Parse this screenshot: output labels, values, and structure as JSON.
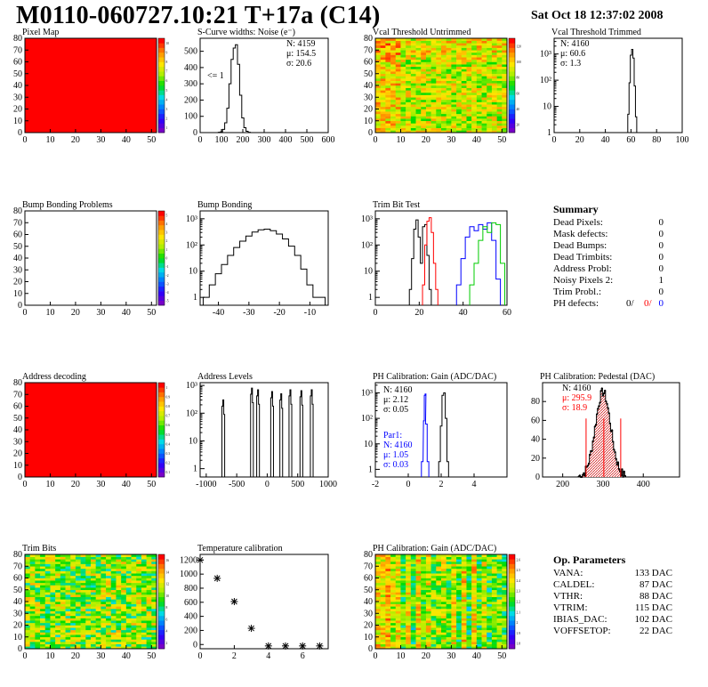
{
  "header": {
    "title": "M0110-060727.10:21 T+17a (C14)",
    "date": "Sat Oct 18 12:37:02 2008"
  },
  "chart_data": [
    {
      "id": "pixel_map",
      "type": "heatmap",
      "title": "Pixel Map",
      "x_ticks": [
        "0",
        "10",
        "20",
        "30",
        "40",
        "50"
      ],
      "y_ticks": [
        "0",
        "10",
        "20",
        "30",
        "40",
        "50",
        "60",
        "70",
        "80"
      ],
      "xlim": [
        0,
        52
      ],
      "ylim": [
        0,
        80
      ],
      "fill_color": "#ff0000",
      "colorbar_ticks": [
        "1",
        "2",
        "3",
        "4",
        "5",
        "6",
        "7",
        "8",
        "9",
        "10"
      ]
    },
    {
      "id": "scurve",
      "type": "line",
      "title": "S-Curve widths: Noise (e⁻)",
      "x_ticks": [
        "0",
        "100",
        "200",
        "300",
        "400",
        "500",
        "600"
      ],
      "y_ticks": [
        "0",
        "100",
        "200",
        "300",
        "400",
        "500"
      ],
      "xlim": [
        0,
        600
      ],
      "ylim": [
        0,
        580
      ],
      "annotation": "<= 1",
      "stats": [
        "N: 4159",
        "μ: 154.5",
        "σ: 20.6"
      ],
      "x": [
        60,
        70,
        80,
        90,
        100,
        110,
        120,
        130,
        140,
        150,
        160,
        170,
        180,
        190,
        200,
        210,
        220,
        230,
        240
      ],
      "y": [
        0,
        0,
        0,
        2,
        5,
        20,
        60,
        150,
        300,
        450,
        520,
        540,
        420,
        230,
        90,
        30,
        8,
        2,
        0
      ]
    },
    {
      "id": "vcal_untrimmed",
      "type": "heatmap",
      "title": "Vcal Threshold Untrimmed",
      "x_ticks": [
        "0",
        "10",
        "20",
        "30",
        "40",
        "50"
      ],
      "y_ticks": [
        "0",
        "10",
        "20",
        "30",
        "40",
        "50",
        "60",
        "70",
        "80"
      ],
      "xlim": [
        0,
        52
      ],
      "ylim": [
        0,
        80
      ],
      "colorbar_ticks": [
        "20",
        "40",
        "60",
        "80",
        "100",
        "120"
      ]
    },
    {
      "id": "vcal_trimmed",
      "type": "line",
      "title": "Vcal Threshold Trimmed",
      "x_ticks": [
        "0",
        "20",
        "40",
        "60",
        "80",
        "100"
      ],
      "y_log_ticks": [
        "1",
        "10",
        "10²",
        "10³"
      ],
      "xlim": [
        0,
        100
      ],
      "log_decades": [
        0,
        3.6
      ],
      "stats": [
        "N: 4160",
        "μ: 60.6",
        "σ:  1.3"
      ],
      "x": [
        57,
        58,
        59,
        60,
        61,
        62,
        63,
        64,
        65
      ],
      "y": [
        1,
        5,
        80,
        900,
        1500,
        700,
        60,
        4,
        1
      ]
    },
    {
      "id": "bump_problems",
      "type": "heatmap",
      "title": "Bump Bonding Problems",
      "x_ticks": [
        "0",
        "10",
        "20",
        "30",
        "40",
        "50"
      ],
      "y_ticks": [
        "0",
        "10",
        "20",
        "30",
        "40",
        "50",
        "60",
        "70",
        "80"
      ],
      "xlim": [
        0,
        52
      ],
      "ylim": [
        0,
        80
      ],
      "fill_color": "#ffffff",
      "colorbar_ticks": [
        "-5",
        "-4",
        "-3",
        "-2",
        "-1",
        "0",
        "1",
        "2",
        "3",
        "4",
        "5"
      ]
    },
    {
      "id": "bump_bonding",
      "type": "line",
      "title": "Bump Bonding",
      "x_ticks": [
        "-40",
        "-30",
        "-20",
        "-10"
      ],
      "y_log_ticks": [
        "1",
        "10",
        "10²",
        "10³"
      ],
      "xlim": [
        -46,
        -4
      ],
      "log_decades": [
        -0.3,
        3.3
      ],
      "x": [
        -44,
        -42,
        -40,
        -38,
        -36,
        -34,
        -32,
        -30,
        -28,
        -26,
        -24,
        -22,
        -20,
        -18,
        -16,
        -14,
        -12,
        -10,
        -8,
        -6
      ],
      "y": [
        1,
        3,
        8,
        18,
        40,
        80,
        140,
        220,
        310,
        380,
        400,
        350,
        260,
        170,
        90,
        40,
        12,
        3,
        1,
        1
      ]
    },
    {
      "id": "trim_bit_test",
      "type": "line",
      "title": "Trim Bit Test",
      "x_ticks": [
        "0",
        "20",
        "40",
        "60"
      ],
      "y_log_ticks": [
        "1",
        "10",
        "10²",
        "10³"
      ],
      "xlim": [
        0,
        60
      ],
      "log_decades": [
        -0.3,
        3.3
      ],
      "series": [
        {
          "color": "#000000",
          "x": [
            16,
            17,
            18,
            19,
            20,
            21,
            22,
            23,
            24,
            25
          ],
          "y": [
            2,
            30,
            400,
            900,
            200,
            20,
            500,
            600,
            40,
            2
          ]
        },
        {
          "color": "#ff0000",
          "x": [
            22,
            23,
            24,
            25,
            26,
            27,
            28
          ],
          "y": [
            3,
            100,
            800,
            1100,
            300,
            20,
            2
          ]
        },
        {
          "color": "#0000ff",
          "x": [
            38,
            40,
            42,
            44,
            46,
            48,
            50,
            52,
            54,
            56
          ],
          "y": [
            3,
            30,
            200,
            500,
            350,
            600,
            400,
            700,
            150,
            5
          ]
        },
        {
          "color": "#00cc00",
          "x": [
            44,
            46,
            48,
            50,
            52,
            54,
            56,
            58
          ],
          "y": [
            3,
            20,
            150,
            500,
            300,
            700,
            600,
            20
          ]
        }
      ]
    },
    {
      "id": "summary",
      "type": "table",
      "title": "Summary",
      "rows": [
        {
          "label": "Dead Pixels:",
          "value": "0"
        },
        {
          "label": "Mask defects:",
          "value": "0"
        },
        {
          "label": "Dead Bumps:",
          "value": "0"
        },
        {
          "label": "Dead Trimbits:",
          "value": "0"
        },
        {
          "label": "Address Probl:",
          "value": "0"
        },
        {
          "label": "Noisy Pixels 2:",
          "value": "1"
        },
        {
          "label": "Trim Probl.:",
          "value": "0"
        }
      ],
      "ph_defects": {
        "label": "PH defects:",
        "values": [
          "0/",
          "0/",
          "0"
        ],
        "colors": [
          "#000000",
          "#ff0000",
          "#0000ff"
        ]
      }
    },
    {
      "id": "address_decoding",
      "type": "heatmap",
      "title": "Address decoding",
      "x_ticks": [
        "0",
        "10",
        "20",
        "30",
        "40",
        "50"
      ],
      "y_ticks": [
        "0",
        "10",
        "20",
        "30",
        "40",
        "50",
        "60",
        "70",
        "80"
      ],
      "xlim": [
        0,
        52
      ],
      "ylim": [
        0,
        80
      ],
      "fill_color": "#ff0000",
      "colorbar_ticks": [
        "0.1",
        "0.2",
        "0.3",
        "0.4",
        "0.5",
        "0.6",
        "0.7",
        "0.8",
        "0.9",
        "1"
      ]
    },
    {
      "id": "address_levels",
      "type": "line",
      "title": "Address Levels",
      "x_ticks": [
        "-1000",
        "-500",
        "0",
        "500",
        "1000"
      ],
      "y_log_ticks": [
        "1",
        "10",
        "10²",
        "10³"
      ],
      "xlim": [
        -1100,
        1000
      ],
      "log_decades": [
        -0.3,
        3.1
      ],
      "peaks": [
        -720,
        -250,
        -150,
        80,
        230,
        380,
        560,
        730
      ],
      "peak_heights": [
        300,
        800,
        700,
        600,
        500,
        700,
        650,
        700
      ]
    },
    {
      "id": "ph_gain",
      "type": "line",
      "title": "PH Calibration: Gain (ADC/DAC)",
      "x_ticks": [
        "-2",
        "0",
        "2",
        "4"
      ],
      "y_log_ticks": [
        "1",
        "10",
        "10²",
        "10³"
      ],
      "xlim": [
        -2,
        6
      ],
      "log_decades": [
        -0.3,
        3.4
      ],
      "stats": [
        "N: 4160",
        "μ: 2.12",
        "σ: 0.05"
      ],
      "stats2": [
        "Par1:",
        "N: 4160",
        "μ: 1.05",
        "σ: 0.03"
      ],
      "series": [
        {
          "color": "#000000",
          "x": [
            1.9,
            2.0,
            2.1,
            2.2,
            2.3,
            2.4
          ],
          "y": [
            2,
            50,
            800,
            1000,
            100,
            2
          ]
        },
        {
          "color": "#0000ff",
          "x": [
            0.85,
            0.95,
            1.0,
            1.05,
            1.1,
            1.2
          ],
          "y": [
            2,
            80,
            800,
            900,
            60,
            2
          ]
        }
      ]
    },
    {
      "id": "ph_pedestal",
      "type": "bar",
      "title": "PH Calibration: Pedestal (DAC)",
      "x_ticks": [
        "200",
        "300",
        "400"
      ],
      "y_ticks": [
        "0",
        "20",
        "40",
        "60",
        "80"
      ],
      "xlim": [
        150,
        490
      ],
      "ylim": [
        0,
        100
      ],
      "stats": [
        "N: 4160",
        "μ: 295.9",
        "σ: 18.9"
      ],
      "stat_colors": [
        "#000000",
        "#ff0000",
        "#ff0000"
      ],
      "cut_lines": [
        258,
        302,
        344
      ]
    },
    {
      "id": "trim_bits",
      "type": "heatmap",
      "title": "Trim Bits",
      "x_ticks": [
        "0",
        "10",
        "20",
        "30",
        "40",
        "50"
      ],
      "y_ticks": [
        "0",
        "10",
        "20",
        "30",
        "40",
        "50",
        "60",
        "70",
        "80"
      ],
      "xlim": [
        0,
        52
      ],
      "ylim": [
        0,
        80
      ],
      "colorbar_ticks": [
        "2",
        "4",
        "6",
        "8",
        "10",
        "12",
        "14",
        "16"
      ]
    },
    {
      "id": "temp_calibration",
      "type": "scatter",
      "title": "Temperature calibration",
      "x_ticks": [
        "0",
        "2",
        "4",
        "6"
      ],
      "y_ticks": [
        "0",
        "200",
        "400",
        "600",
        "800",
        "1000",
        "1200"
      ],
      "xlim": [
        0,
        7.5
      ],
      "ylim": [
        -60,
        1280
      ],
      "x": [
        0,
        1,
        2,
        3,
        4,
        5,
        6,
        7
      ],
      "y": [
        1200,
        940,
        610,
        230,
        -20,
        -20,
        -20,
        -20
      ]
    },
    {
      "id": "ph_gain_map",
      "type": "heatmap",
      "title": "PH Calibration: Gain (ADC/DAC)",
      "x_ticks": [
        "0",
        "10",
        "20",
        "30",
        "40",
        "50"
      ],
      "y_ticks": [
        "0",
        "10",
        "20",
        "30",
        "40",
        "50",
        "60",
        "70",
        "80"
      ],
      "xlim": [
        0,
        52
      ],
      "ylim": [
        0,
        80
      ],
      "colorbar_ticks": [
        "1.8",
        "1.9",
        "2",
        "2.1",
        "2.2",
        "2.3",
        "2.4",
        "2.5",
        "2.6"
      ]
    },
    {
      "id": "op_parameters",
      "type": "table",
      "title": "Op. Parameters",
      "rows": [
        {
          "label": "VANA:",
          "value": "133 DAC"
        },
        {
          "label": "CALDEL:",
          "value": "87 DAC"
        },
        {
          "label": "VTHR:",
          "value": "88 DAC"
        },
        {
          "label": "VTRIM:",
          "value": "115 DAC"
        },
        {
          "label": "IBIAS_DAC:",
          "value": "102 DAC"
        },
        {
          "label": "VOFFSETOP:",
          "value": "22 DAC"
        }
      ]
    }
  ]
}
